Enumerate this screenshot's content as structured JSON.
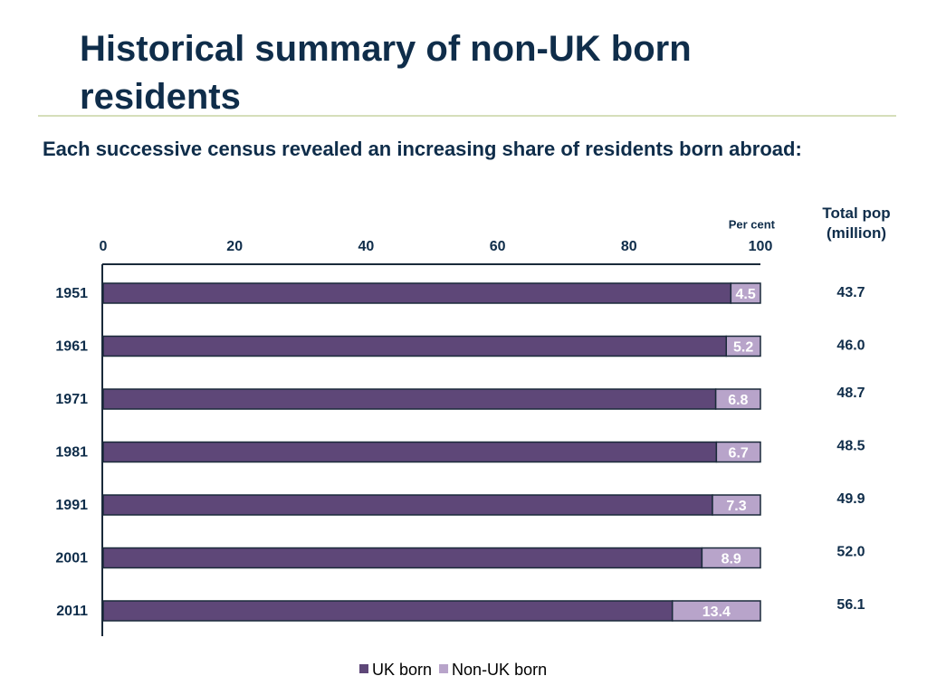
{
  "chart_data": {
    "type": "stacked_barh",
    "title": "Historical summary of non-UK born residents",
    "subtitle": "Each successive census revealed an increasing share of residents born abroad:",
    "unit_label": "Per cent",
    "categories": [
      "1951",
      "1961",
      "1971",
      "1981",
      "1991",
      "2001",
      "2011"
    ],
    "series": [
      {
        "name": "UK born",
        "color": "#5e4778",
        "values": [
          95.5,
          94.8,
          93.2,
          93.3,
          92.7,
          91.1,
          86.6
        ]
      },
      {
        "name": "Non-UK born",
        "color": "#b8a4ca",
        "values": [
          4.5,
          5.2,
          6.8,
          6.7,
          7.3,
          8.9,
          13.4
        ]
      }
    ],
    "labeled_series": 1,
    "xlim": [
      0,
      100
    ],
    "xticks": [
      0,
      20,
      40,
      60,
      80,
      100
    ],
    "grid": false,
    "side_column": {
      "header": "Total pop (million)",
      "values": [
        "43.7",
        "46.0",
        "48.7",
        "48.5",
        "49.9",
        "52.0",
        "56.1"
      ]
    }
  }
}
